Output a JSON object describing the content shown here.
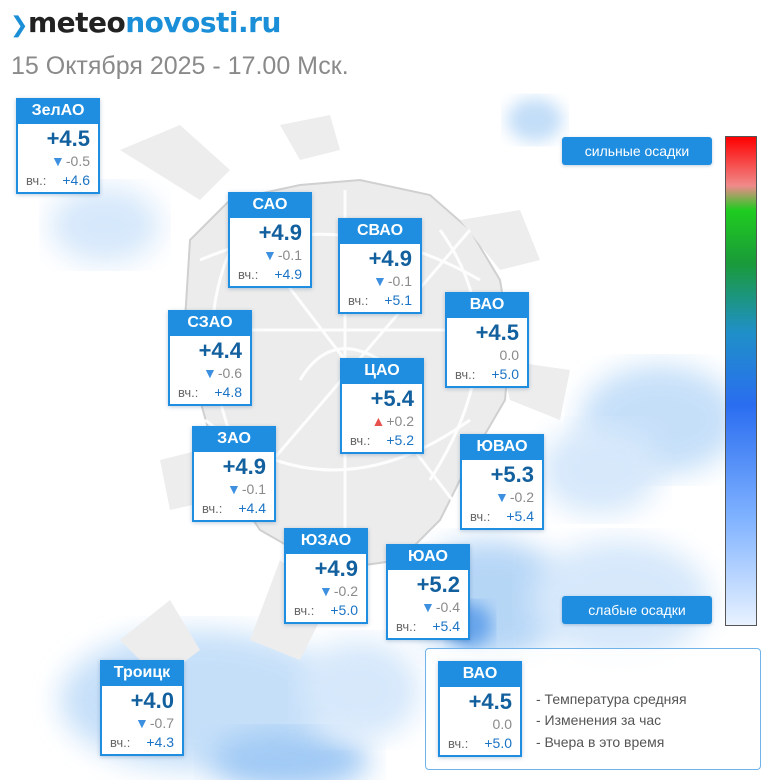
{
  "header": {
    "logo_mark": "❯",
    "logo_part1": "meteo",
    "logo_part2": "novosti.ru",
    "subtitle": "15 Октября 2025 - 17.00 Мск."
  },
  "yesterday_label": "вч.:",
  "districts": [
    {
      "name": "ЗелАО",
      "temp": "+4.5",
      "trend": "down",
      "change": "-0.5",
      "yesterday": "+4.6"
    },
    {
      "name": "САО",
      "temp": "+4.9",
      "trend": "down",
      "change": "-0.1",
      "yesterday": "+4.9"
    },
    {
      "name": "СВАО",
      "temp": "+4.9",
      "trend": "down",
      "change": "-0.1",
      "yesterday": "+5.1"
    },
    {
      "name": "ВАО",
      "temp": "+4.5",
      "trend": "none",
      "change": "0.0",
      "yesterday": "+5.0"
    },
    {
      "name": "СЗАО",
      "temp": "+4.4",
      "trend": "down",
      "change": "-0.6",
      "yesterday": "+4.8"
    },
    {
      "name": "ЦАО",
      "temp": "+5.4",
      "trend": "up",
      "change": "+0.2",
      "yesterday": "+5.2"
    },
    {
      "name": "ЗАО",
      "temp": "+4.9",
      "trend": "down",
      "change": "-0.1",
      "yesterday": "+4.4"
    },
    {
      "name": "ЮВАО",
      "temp": "+5.3",
      "trend": "down",
      "change": "-0.2",
      "yesterday": "+5.4"
    },
    {
      "name": "ЮЗАО",
      "temp": "+4.9",
      "trend": "down",
      "change": "-0.2",
      "yesterday": "+5.0"
    },
    {
      "name": "ЮАО",
      "temp": "+5.2",
      "trend": "down",
      "change": "-0.4",
      "yesterday": "+5.4"
    },
    {
      "name": "Троицк",
      "temp": "+4.0",
      "trend": "down",
      "change": "-0.7",
      "yesterday": "+4.3"
    }
  ],
  "precip_scale": {
    "top_label": "сильные осадки",
    "bottom_label": "слабые осадки",
    "colors": [
      "#ff0000",
      "#1fcc1f",
      "#2a6df0",
      "#e8f2ff"
    ]
  },
  "legend": {
    "sample": {
      "name": "ВАО",
      "temp": "+4.5",
      "trend": "none",
      "change": "0.0",
      "yesterday": "+5.0"
    },
    "line1": "- Температура средняя",
    "line2": "- Изменения за час",
    "line3": "- Вчера в это время"
  }
}
